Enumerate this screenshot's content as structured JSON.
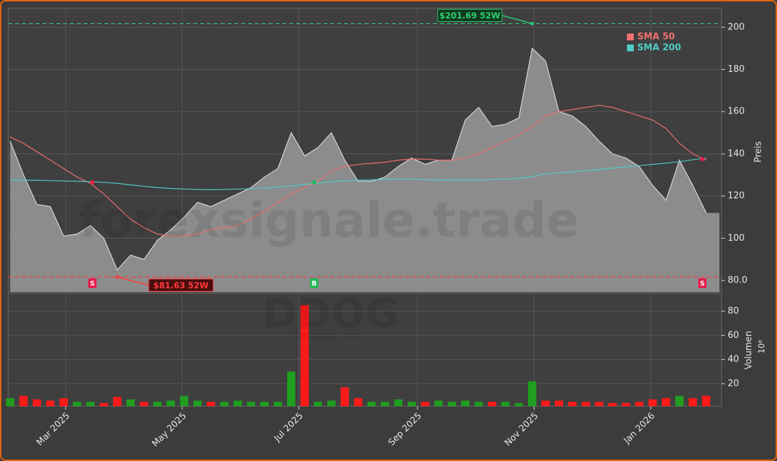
{
  "chart_data": {
    "type": "stock",
    "watermark": "forexsignale.trade",
    "ticker": "DDOG",
    "company": "Datadog, Inc.",
    "ylabel": "Preis",
    "volume_label": "Volumen",
    "volume_scale": "10⁶",
    "x": [
      "2025-01-31",
      "2025-02-07",
      "2025-02-14",
      "2025-02-21",
      "2025-02-28",
      "2025-03-07",
      "2025-03-14",
      "2025-03-21",
      "2025-03-28",
      "2025-04-04",
      "2025-04-11",
      "2025-04-18",
      "2025-04-25",
      "2025-05-02",
      "2025-05-09",
      "2025-05-16",
      "2025-05-23",
      "2025-05-30",
      "2025-06-06",
      "2025-06-13",
      "2025-06-20",
      "2025-06-27",
      "2025-07-04",
      "2025-07-11",
      "2025-07-18",
      "2025-07-25",
      "2025-08-01",
      "2025-08-08",
      "2025-08-15",
      "2025-08-22",
      "2025-08-29",
      "2025-09-05",
      "2025-09-12",
      "2025-09-19",
      "2025-09-26",
      "2025-10-03",
      "2025-10-10",
      "2025-10-17",
      "2025-10-24",
      "2025-10-31",
      "2025-11-07",
      "2025-11-14",
      "2025-11-21",
      "2025-11-28",
      "2025-12-05",
      "2025-12-12",
      "2025-12-19",
      "2025-12-26",
      "2026-01-02",
      "2026-01-09",
      "2026-01-16",
      "2026-01-23",
      "2026-01-30"
    ],
    "xlim": [
      "2025-01-30",
      "2026-02-07"
    ],
    "xticks": [
      {
        "value": "2025-03-01",
        "label": "Mar 2025"
      },
      {
        "value": "2025-05-01",
        "label": "May 2025"
      },
      {
        "value": "2025-07-01",
        "label": "Jul 2025"
      },
      {
        "value": "2025-09-01",
        "label": "Sep 2025"
      },
      {
        "value": "2025-11-01",
        "label": "Nov 2025"
      },
      {
        "value": "2026-01-01",
        "label": "Jan 2026"
      }
    ],
    "ylim": [
      74.5,
      209
    ],
    "yticks": [
      {
        "value": 80,
        "label": "80.0"
      },
      100,
      120,
      140,
      160,
      180,
      200
    ],
    "volume_ylim": [
      1.3,
      94.7
    ],
    "volume_yticks": [
      20,
      40,
      60,
      80
    ],
    "grid": true,
    "price_color": "#8c8c8c",
    "up_color": "#1f9e1f",
    "down_color": "#ff1a1a",
    "legend_position": "upper right",
    "close": [
      146,
      130,
      116,
      115,
      101,
      102,
      106,
      100,
      85,
      92,
      90,
      99,
      104,
      110,
      117,
      115,
      118,
      121,
      124,
      129,
      133,
      150,
      139,
      143,
      150,
      137,
      127,
      127,
      129,
      134,
      138,
      135,
      137,
      137,
      156,
      162,
      153,
      154,
      157,
      190,
      184,
      160,
      158,
      153,
      146,
      140,
      138,
      134,
      125,
      118,
      137,
      125,
      112
    ],
    "volume": [
      8,
      10,
      7,
      6,
      8,
      5,
      5,
      4,
      9,
      7,
      5,
      5,
      6,
      10,
      6,
      5,
      5,
      6,
      5,
      5,
      5,
      30,
      85,
      5,
      6,
      17,
      8,
      5,
      5,
      7,
      5,
      5,
      6,
      5,
      6,
      5,
      5,
      5,
      4,
      22,
      6,
      6,
      5,
      5,
      5,
      4,
      4,
      5,
      7,
      8,
      10,
      8,
      10
    ],
    "series": [
      {
        "name": "SMA 50",
        "color": "#f07070",
        "values": [
          148,
          145,
          141,
          137,
          133,
          129,
          126,
          121,
          115,
          109,
          105,
          102,
          101,
          101,
          102,
          104,
          105,
          106,
          109,
          113,
          117,
          121,
          124,
          127,
          132,
          134,
          135,
          135.5,
          136,
          137,
          137.5,
          137.5,
          137,
          137,
          138,
          140,
          143,
          146,
          149,
          153,
          158,
          160,
          161,
          162,
          163,
          162,
          160,
          158,
          156,
          152,
          145,
          140,
          137
        ]
      },
      {
        "name": "SMA 200",
        "color": "#4ecdc4",
        "values": [
          127.5,
          127.5,
          127.5,
          127.3,
          127.1,
          127,
          126.8,
          126.5,
          126,
          125.3,
          124.6,
          124,
          123.6,
          123.3,
          123.1,
          123,
          123.1,
          123.3,
          123.5,
          123.8,
          124.3,
          124.8,
          125.5,
          126.2,
          126.8,
          127.2,
          127.5,
          127.7,
          127.9,
          128,
          128,
          127.8,
          127.6,
          127.5,
          127.5,
          127.6,
          127.8,
          128,
          128.3,
          129.3,
          130.5,
          131,
          131.5,
          132,
          132.6,
          133.2,
          133.8,
          134.4,
          135,
          135.6,
          136.3,
          137.2,
          138
        ]
      }
    ],
    "annotations": [
      {
        "label": "$201.69 52W",
        "value": 201.69,
        "date": "2025-10-31",
        "color": "#2ecc71"
      },
      {
        "label": "$81.63 52W",
        "value": 81.63,
        "date": "2025-03-28",
        "color": "#ff3b3b"
      }
    ],
    "signals": [
      {
        "label": "S",
        "date": "2025-03-15",
        "price": 126.5,
        "color": "#e8194a"
      },
      {
        "label": "B",
        "date": "2025-07-09",
        "price": 126.5,
        "color": "#1db954"
      },
      {
        "label": "S",
        "date": "2026-01-28",
        "price": 137.5,
        "color": "#e8194a"
      }
    ]
  }
}
